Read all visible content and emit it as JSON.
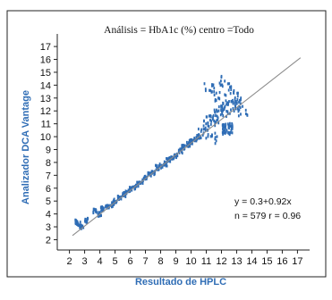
{
  "chart_data": {
    "type": "scatter",
    "title": "Análisis = HbA1c (%) centro =Todo",
    "xlabel": "Resultado de HPLC",
    "ylabel": "Analizador DCA Vantage",
    "xlim": [
      1.2,
      17.8
    ],
    "ylim": [
      1.2,
      17.7
    ],
    "x_ticks": [
      "2",
      "3",
      "4",
      "5",
      "6",
      "7",
      "8",
      "9",
      "10",
      "11",
      "12",
      "13",
      "14",
      "15",
      "16",
      "17"
    ],
    "y_ticks": [
      "2",
      "3",
      "4",
      "5",
      "6",
      "7",
      "8",
      "9",
      "10",
      "11",
      "12",
      "13",
      "14",
      "15",
      "16",
      "17"
    ],
    "grid": false,
    "regression": {
      "intercept": 0.3,
      "slope": 0.92,
      "x_range": [
        2.2,
        17.2
      ]
    },
    "annotations": {
      "equation": "y = 0.3+0.92x",
      "stats": "n = 579  r = 0.96"
    },
    "colors": {
      "points": "#2f6db5",
      "line": "#8c8c8c",
      "axis_label": "#2f6db5",
      "frame": "#222222"
    },
    "n_points": 579,
    "point_clusters": [
      [
        2.5,
        3.4
      ],
      [
        2.6,
        3.2
      ],
      [
        2.8,
        3.0
      ],
      [
        3.1,
        3.5
      ],
      [
        3.7,
        4.2
      ],
      [
        4.0,
        4.0
      ],
      [
        4.2,
        4.4
      ],
      [
        4.5,
        4.5
      ],
      [
        4.8,
        4.7
      ],
      [
        5.0,
        5.0
      ],
      [
        5.3,
        5.3
      ],
      [
        5.6,
        5.5
      ],
      [
        5.8,
        5.7
      ],
      [
        6.0,
        5.9
      ],
      [
        6.3,
        6.1
      ],
      [
        6.5,
        6.3
      ],
      [
        6.8,
        6.5
      ],
      [
        7.0,
        6.8
      ],
      [
        7.3,
        7.1
      ],
      [
        7.5,
        7.2
      ],
      [
        7.8,
        7.6
      ],
      [
        8.0,
        7.7
      ],
      [
        8.3,
        7.9
      ],
      [
        8.5,
        8.2
      ],
      [
        8.8,
        8.4
      ],
      [
        9.0,
        8.5
      ],
      [
        9.3,
        8.9
      ],
      [
        9.5,
        9.2
      ],
      [
        9.8,
        9.4
      ],
      [
        10.0,
        9.6
      ],
      [
        10.3,
        9.8
      ],
      [
        10.5,
        10.0
      ],
      [
        10.8,
        10.3
      ],
      [
        11.0,
        10.8
      ],
      [
        11.3,
        11.2
      ],
      [
        11.5,
        11.5
      ],
      [
        11.8,
        11.7
      ],
      [
        12.0,
        12.0
      ],
      [
        12.3,
        12.2
      ],
      [
        12.6,
        12.4
      ],
      [
        13.0,
        12.6
      ],
      [
        13.4,
        12.0
      ],
      [
        11.2,
        13.8
      ],
      [
        11.6,
        13.2
      ],
      [
        12.2,
        14.3
      ],
      [
        12.5,
        13.6
      ],
      [
        12.9,
        13.0
      ],
      [
        11.4,
        9.9
      ],
      [
        12.4,
        10.6
      ]
    ]
  }
}
